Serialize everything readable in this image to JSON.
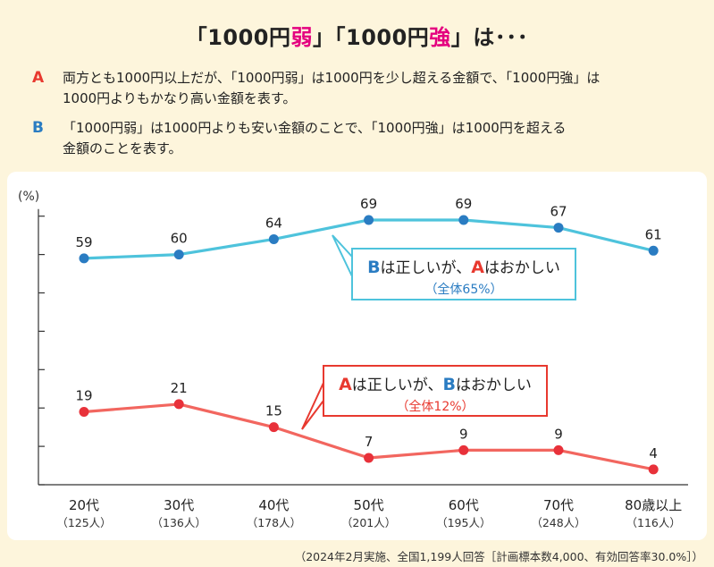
{
  "title": {
    "prefix": "「1000円",
    "weak": "弱",
    "middle": "」「1000円",
    "strong": "強",
    "suffix": "」は･･･"
  },
  "options": {
    "a": {
      "badge": "A",
      "line1": "両方とも1000円以上だが、「1000円弱」は1000円を少し超える金額で、「1000円強」は",
      "line2": "1000円よりもかなり高い金額を表す。"
    },
    "b": {
      "badge": "B",
      "line1": "「1000円弱」は1000円よりも安い金額のことで、「1000円強」は1000円を超える",
      "line2": "金額のことを表す。"
    }
  },
  "callouts": {
    "blue": {
      "b_letter": "B",
      "mid": "は正しいが、",
      "a_letter": "A",
      "end": "はおかしい",
      "total": "（全体65%）"
    },
    "red": {
      "a_letter": "A",
      "mid": "は正しいが、",
      "b_letter": "B",
      "end": "はおかしい",
      "total": "（全体12%）"
    }
  },
  "footnote": "（2024年2月実施、全国1,199人回答［計画標本数4,000、有効回答率30.0%］）",
  "colors": {
    "blue_series": "#4ec3dc",
    "blue_point": "#2a7cc2",
    "red_series": "#f2665f",
    "red_point": "#e8313a",
    "highlight": "#e4007f"
  },
  "chart_data": {
    "type": "line",
    "ylabel": "(%)",
    "ylim": [
      0,
      70
    ],
    "y_ticks": [
      0,
      10,
      20,
      30,
      40,
      50,
      60,
      70
    ],
    "categories": [
      "20代",
      "30代",
      "40代",
      "50代",
      "60代",
      "70代",
      "80歳以上"
    ],
    "category_counts": [
      "（125人）",
      "（136人）",
      "（178人）",
      "（201人）",
      "（195人）",
      "（248人）",
      "（116人）"
    ],
    "series": [
      {
        "key": "blue",
        "values": [
          59,
          60,
          64,
          69,
          69,
          67,
          61
        ]
      },
      {
        "key": "red",
        "values": [
          19,
          21,
          15,
          7,
          9,
          9,
          4
        ]
      }
    ]
  }
}
